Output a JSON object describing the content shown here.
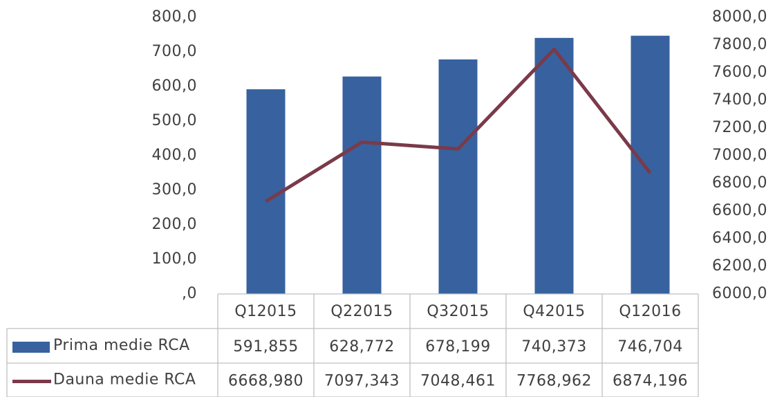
{
  "chart_data": {
    "type": "bar",
    "categories": [
      "Q12015",
      "Q22015",
      "Q32015",
      "Q42015",
      "Q12016"
    ],
    "series": [
      {
        "name": "Prima medie RCA",
        "type": "bar",
        "color": "#37629f",
        "values": [
          591.855,
          628.772,
          678.199,
          740.373,
          746.704
        ],
        "value_labels": [
          "591,855",
          "628,772",
          "678,199",
          "740,373",
          "746,704"
        ]
      },
      {
        "name": "Dauna medie RCA",
        "type": "line",
        "axis": "y2",
        "color": "#7a3a4a",
        "values": [
          6668.98,
          7097.343,
          7048.461,
          7768.962,
          6874.196
        ],
        "value_labels": [
          "6668,980",
          "7097,343",
          "7048,461",
          "7768,962",
          "6874,196"
        ]
      }
    ],
    "ylim": [
      0,
      800
    ],
    "yticks": [
      {
        "value": 0,
        "label": ",0"
      },
      {
        "value": 100,
        "label": "100,0"
      },
      {
        "value": 200,
        "label": "200,0"
      },
      {
        "value": 300,
        "label": "300,0"
      },
      {
        "value": 400,
        "label": "400,0"
      },
      {
        "value": 500,
        "label": "500,0"
      },
      {
        "value": 600,
        "label": "600,0"
      },
      {
        "value": 700,
        "label": "700,0"
      },
      {
        "value": 800,
        "label": "800,0"
      }
    ],
    "y2lim": [
      6000,
      8000
    ],
    "y2ticks": [
      {
        "value": 6000,
        "label": "6000,0"
      },
      {
        "value": 6200,
        "label": "6200,0"
      },
      {
        "value": 6400,
        "label": "6400,0"
      },
      {
        "value": 6600,
        "label": "6600,0"
      },
      {
        "value": 6800,
        "label": "6800,0"
      },
      {
        "value": 7000,
        "label": "7000,0"
      },
      {
        "value": 7200,
        "label": "7200,0"
      },
      {
        "value": 7400,
        "label": "7400,0"
      },
      {
        "value": 7600,
        "label": "7600,0"
      },
      {
        "value": 7800,
        "label": "7800,0"
      },
      {
        "value": 8000,
        "label": "8000,0"
      }
    ],
    "grid": false
  }
}
